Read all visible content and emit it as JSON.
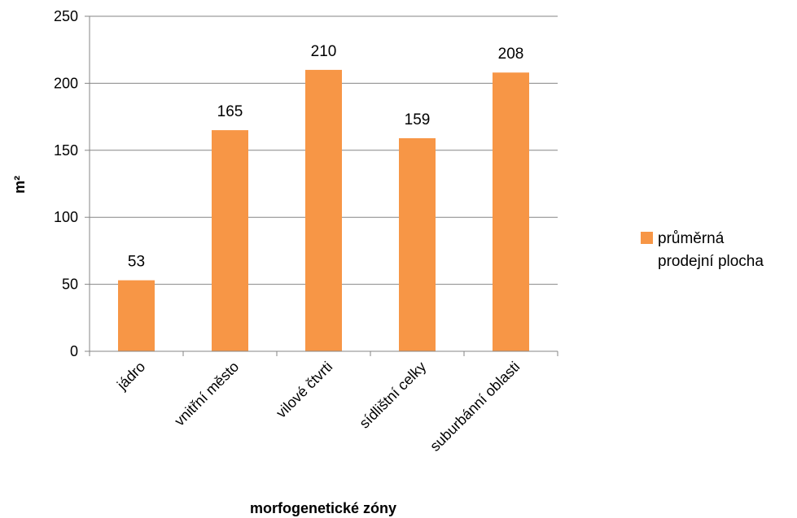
{
  "chart_data": {
    "type": "bar",
    "categories": [
      "jádro",
      "vnitřní město",
      "vilové čtvrti",
      "sídlištní celky",
      "suburbánní oblasti"
    ],
    "series": [
      {
        "name": "průměrná prodejní plocha",
        "name_lines": [
          "průměrná",
          "prodejní plocha"
        ],
        "values": [
          53,
          165,
          210,
          159,
          208
        ],
        "color": "#f79646"
      }
    ],
    "xlabel": "morfogenetické zóny",
    "ylabel": "m²",
    "ylim": [
      0,
      250
    ],
    "yticks": [
      0,
      50,
      100,
      150,
      200,
      250
    ],
    "grid": true,
    "data_labels": true,
    "legend_position": "right"
  }
}
